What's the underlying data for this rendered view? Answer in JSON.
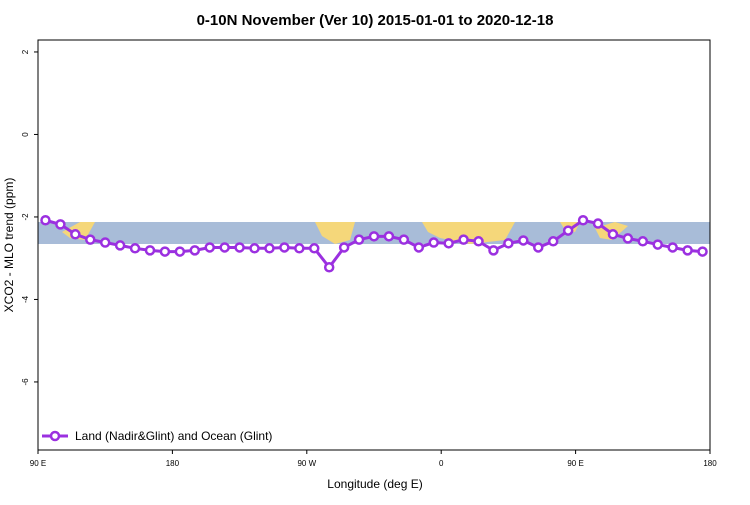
{
  "chart_data": {
    "type": "line",
    "title": "0-10N November (Ver 10)   2015-01-01 to 2020-12-18",
    "x_label": "Longitude (deg E)",
    "y_label": "XCO2 - MLO trend (ppm)",
    "x": [
      95,
      105,
      115,
      125,
      135,
      145,
      155,
      165,
      175,
      185,
      195,
      205,
      215,
      225,
      235,
      245,
      255,
      265,
      275,
      285,
      295,
      305,
      315,
      325,
      335,
      345,
      355,
      365,
      375,
      385,
      395,
      405,
      415,
      425,
      435,
      445,
      455,
      465,
      475,
      485,
      495,
      505,
      515,
      525,
      535
    ],
    "series": [
      {
        "name": "Land (Nadir&Glint) and Ocean (Glint)",
        "color": "#9b30e0",
        "values": [
          -2.08,
          -2.18,
          -2.42,
          -2.55,
          -2.62,
          -2.69,
          -2.76,
          -2.81,
          -2.84,
          -2.84,
          -2.81,
          -2.74,
          -2.74,
          -2.74,
          -2.76,
          -2.76,
          -2.74,
          -2.76,
          -2.76,
          -3.22,
          -2.74,
          -2.55,
          -2.47,
          -2.47,
          -2.55,
          -2.74,
          -2.62,
          -2.64,
          -2.55,
          -2.59,
          -2.81,
          -2.64,
          -2.57,
          -2.74,
          -2.59,
          -2.33,
          -2.08,
          -2.16,
          -2.42,
          -2.52,
          -2.59,
          -2.67,
          -2.74,
          -2.81,
          -2.84
        ]
      }
    ],
    "xlim": [
      90,
      540
    ],
    "xticks": [
      {
        "value": 90,
        "label": "90 E"
      },
      180,
      {
        "value": 270,
        "label": "90 W"
      },
      {
        "value": 360,
        "label": "0"
      },
      {
        "value": 450,
        "label": "90 E"
      },
      {
        "value": 540,
        "label": "180"
      }
    ],
    "ylim": [
      -7.65,
      2.29
    ],
    "yticks": [
      -6,
      -4,
      -2,
      0,
      2
    ],
    "legend": "bottom-left"
  }
}
